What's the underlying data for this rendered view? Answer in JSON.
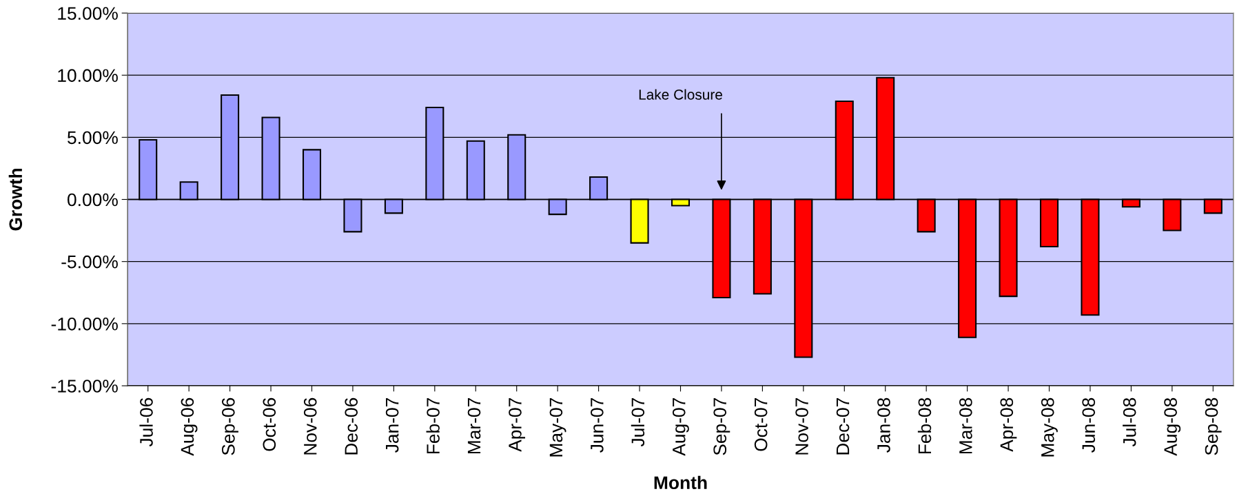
{
  "chart_data": {
    "type": "bar",
    "xlabel": "Month",
    "ylabel": "Growth",
    "categories": [
      "Jul-06",
      "Aug-06",
      "Sep-06",
      "Oct-06",
      "Nov-06",
      "Dec-06",
      "Jan-07",
      "Feb-07",
      "Mar-07",
      "Apr-07",
      "May-07",
      "Jun-07",
      "Jul-07",
      "Aug-07",
      "Sep-07",
      "Oct-07",
      "Nov-07",
      "Dec-07",
      "Jan-08",
      "Feb-08",
      "Mar-08",
      "Apr-08",
      "May-08",
      "Jun-08",
      "Jul-08",
      "Aug-08",
      "Sep-08"
    ],
    "values": [
      4.8,
      1.4,
      8.4,
      6.6,
      4.0,
      -2.6,
      -1.1,
      7.4,
      4.7,
      5.2,
      -1.2,
      1.8,
      -3.5,
      -0.5,
      -7.9,
      -7.6,
      -12.7,
      7.9,
      9.8,
      -2.6,
      -11.1,
      -7.8,
      -3.8,
      -9.3,
      -0.6,
      -2.5,
      -1.1
    ],
    "colors": [
      "#9999ff",
      "#9999ff",
      "#9999ff",
      "#9999ff",
      "#9999ff",
      "#9999ff",
      "#9999ff",
      "#9999ff",
      "#9999ff",
      "#9999ff",
      "#9999ff",
      "#9999ff",
      "#ffff00",
      "#ffff00",
      "#ff0000",
      "#ff0000",
      "#ff0000",
      "#ff0000",
      "#ff0000",
      "#ff0000",
      "#ff0000",
      "#ff0000",
      "#ff0000",
      "#ff0000",
      "#ff0000",
      "#ff0000",
      "#ff0000"
    ],
    "ylim": [
      -15,
      15
    ],
    "yticks": [
      {
        "value": -15,
        "label": "-15.00%"
      },
      {
        "value": -10,
        "label": "-10.00%"
      },
      {
        "value": -5,
        "label": "-5.00%"
      },
      {
        "value": 0,
        "label": "0.00%"
      },
      {
        "value": 5,
        "label": "5.00%"
      },
      {
        "value": 10,
        "label": "10.00%"
      },
      {
        "value": 15,
        "label": "15.00%"
      }
    ],
    "grid": "y",
    "legend": false,
    "annotations": [
      "Lake Closure"
    ]
  }
}
